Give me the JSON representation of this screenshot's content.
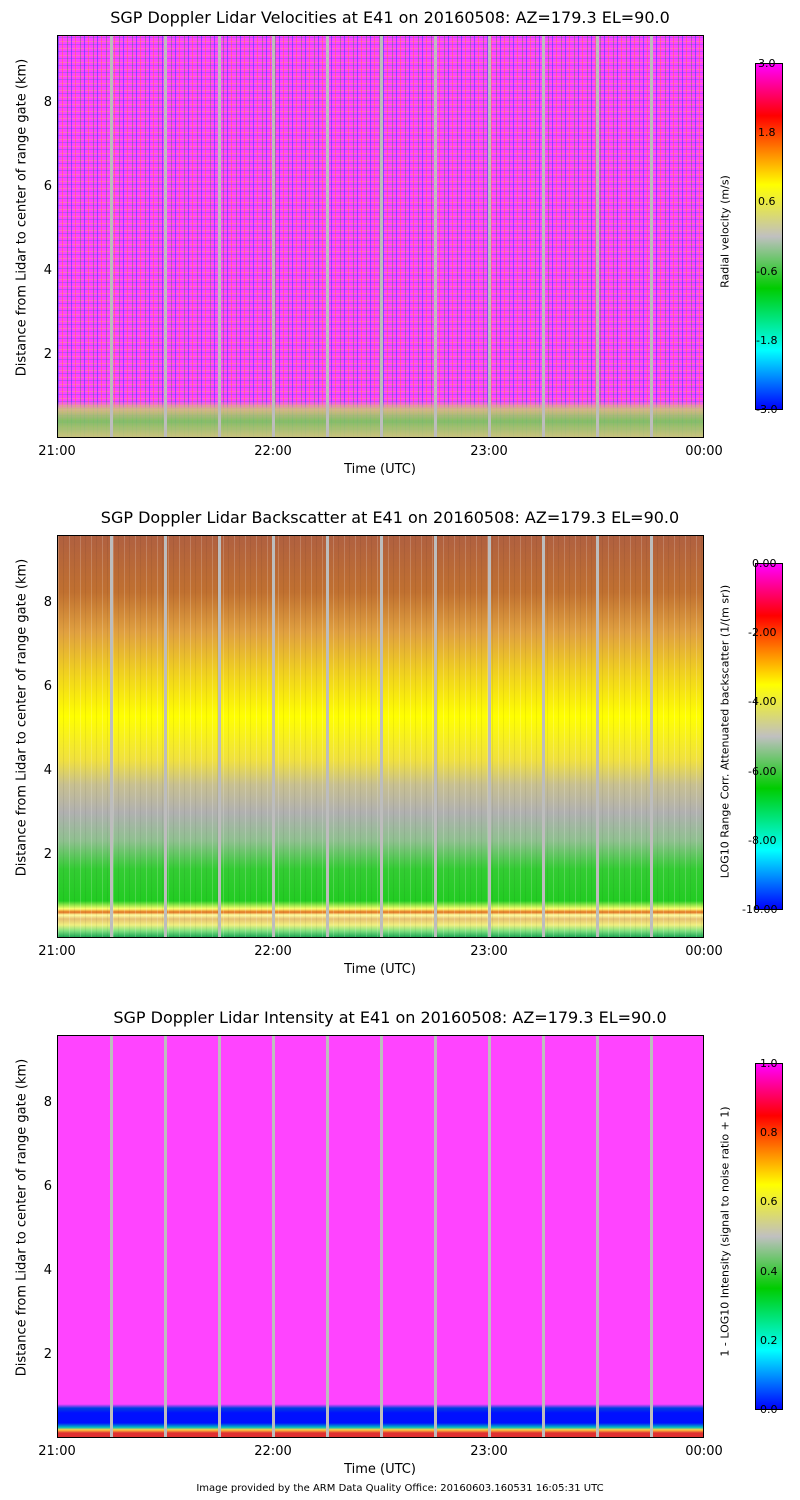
{
  "chart_data": [
    {
      "type": "heatmap",
      "title": "SGP Doppler Lidar Velocities at E41 on 20160508: AZ=179.3 EL=90.0",
      "xlabel": "Time (UTC)",
      "ylabel": "Distance from Lidar to center of range gate (km)",
      "x_ticks": [
        "21:00",
        "22:00",
        "23:00",
        "00:00"
      ],
      "x_range_hours": [
        21,
        24
      ],
      "y_ticks": [
        "2",
        "4",
        "6",
        "8"
      ],
      "y_range_km": [
        0,
        9.6
      ],
      "colorbar_label": "Radial velocity (m/s)",
      "colorbar_ticks": [
        "3.0",
        "1.8",
        "0.6",
        "-0.6",
        "-1.8",
        "-3.0"
      ],
      "colorbar_range": [
        -3.0,
        3.0
      ],
      "colormap": [
        "#0000ff",
        "#00ffff",
        "#00cc00",
        "#c0c0c0",
        "#ffff00",
        "#ff8000",
        "#ff0000",
        "#ff00ff"
      ]
    },
    {
      "type": "heatmap",
      "title": "SGP Doppler Lidar Backscatter at E41 on 20160508: AZ=179.3 EL=90.0",
      "xlabel": "Time (UTC)",
      "ylabel": "Distance from Lidar to center of range gate (km)",
      "x_ticks": [
        "21:00",
        "22:00",
        "23:00",
        "00:00"
      ],
      "x_range_hours": [
        21,
        24
      ],
      "y_ticks": [
        "2",
        "4",
        "6",
        "8"
      ],
      "y_range_km": [
        0,
        9.6
      ],
      "colorbar_label": "LOG10 Range Corr. Attenuated backscatter (1/(m sr))",
      "colorbar_ticks": [
        "0.00",
        "-2.00",
        "-4.00",
        "-6.00",
        "-8.00",
        "-10.00"
      ],
      "colorbar_range": [
        -10.0,
        0.0
      ],
      "colormap": [
        "#0000ff",
        "#00ffff",
        "#00cc00",
        "#c0c0c0",
        "#ffff00",
        "#ff8000",
        "#ff0000",
        "#ff00ff"
      ]
    },
    {
      "type": "heatmap",
      "title": "SGP Doppler Lidar Intensity at E41 on 20160508: AZ=179.3 EL=90.0",
      "xlabel": "Time (UTC)",
      "ylabel": "Distance from Lidar to center of range gate (km)",
      "x_ticks": [
        "21:00",
        "22:00",
        "23:00",
        "00:00"
      ],
      "x_range_hours": [
        21,
        24
      ],
      "y_ticks": [
        "2",
        "4",
        "6",
        "8"
      ],
      "y_range_km": [
        0,
        9.6
      ],
      "colorbar_label": "1 - LOG10 Intensity (signal to noise ratio + 1)",
      "colorbar_ticks": [
        "1.0",
        "0.8",
        "0.6",
        "0.4",
        "0.2",
        "0.0"
      ],
      "colorbar_range": [
        0.0,
        1.0
      ],
      "colormap": [
        "#0000ff",
        "#00ffff",
        "#00cc00",
        "#c0c0c0",
        "#ffff00",
        "#ff8000",
        "#ff0000",
        "#ff00ff"
      ]
    }
  ],
  "footer": "Image provided by the ARM Data Quality Office: 20160603.160531 16:05:31 UTC"
}
